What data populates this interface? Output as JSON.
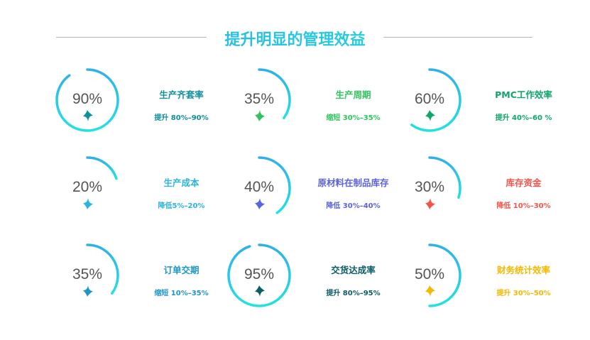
{
  "header": {
    "title": "提升明显的管理效益"
  },
  "metrics": [
    {
      "value": 90,
      "label": "90%",
      "name": "生产齐套率",
      "desc": "提升 80%–90%",
      "direction": "up",
      "color": "#108f9c"
    },
    {
      "value": 35,
      "label": "35%",
      "name": "生产周期",
      "desc": "缩短 30%–35%",
      "direction": "down",
      "color": "#2ec45c"
    },
    {
      "value": 60,
      "label": "60%",
      "name": "PMC工作效率",
      "desc": "提升 40%–60 %",
      "direction": "up",
      "color": "#10a56a"
    },
    {
      "value": 20,
      "label": "20%",
      "name": "生产成本",
      "desc": "降低5%–20%",
      "direction": "down",
      "color": "#2ab4e0"
    },
    {
      "value": 40,
      "label": "40%",
      "name": "原材料在制品库存",
      "desc": "降低 30%–40%",
      "direction": "down",
      "color": "#5a63e0"
    },
    {
      "value": 30,
      "label": "30%",
      "name": "库存资金",
      "desc": "降低 10%–30%",
      "direction": "down",
      "color": "#f5544a"
    },
    {
      "value": 35,
      "label": "35%",
      "name": "订单交期",
      "desc": "缩短 10%–35%",
      "direction": "down",
      "color": "#1f96c8"
    },
    {
      "value": 95,
      "label": "95%",
      "name": "交货达成率",
      "desc": "提升 80%–95%",
      "direction": "up",
      "color": "#0b5c66"
    },
    {
      "value": 50,
      "label": "50%",
      "name": "财务统计效率",
      "desc": "提升 30%–50%",
      "direction": "up",
      "color": "#f5b800"
    }
  ],
  "colors": {
    "ring_start": "#2fb0e8",
    "ring_end": "#22e2e0"
  }
}
